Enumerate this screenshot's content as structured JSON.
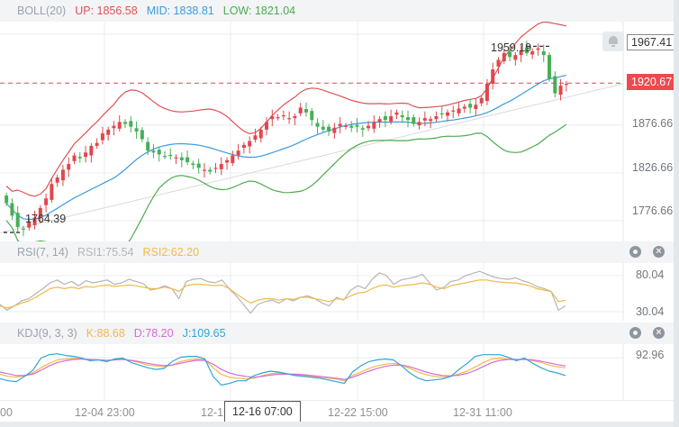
{
  "main_panel": {
    "indicator": "BOLL(20)",
    "up_label": "UP: 1856.58",
    "mid_label": "MID: 1838.81",
    "low_label": "LOW: 1821.04",
    "y_ticks": [
      "1876.66",
      "1826.66",
      "1776.66"
    ],
    "top_tag": "1967.41",
    "current_price_tag": "1920.67",
    "max_annotation": "1959.19",
    "min_annotation": "1764.39",
    "colors": {
      "up": "#e05254",
      "mid": "#3d9be0",
      "low": "#4daa4d",
      "candle_up": "#e0474c",
      "candle_down": "#45b056",
      "current_line": "#e0474c"
    }
  },
  "rsi_panel": {
    "indicator": "RSI(7, 14)",
    "rsi1_label": "RSI1:75.54",
    "rsi2_label": "RSI2:62.20",
    "y_ticks": [
      "80.04",
      "30.04"
    ],
    "colors": {
      "rsi1": "#b5b5b5",
      "rsi2": "#f0b94a"
    }
  },
  "kdj_panel": {
    "indicator": "KDJ(9, 3, 3)",
    "k_label": "K:88.68",
    "d_label": "D:78.20",
    "j_label": "J:109.65",
    "y_ticks": [
      "92.96"
    ],
    "colors": {
      "k": "#f0b94a",
      "d": "#d56bd6",
      "j": "#2fa6d8"
    }
  },
  "x_axis": {
    "labels": [
      "00",
      "12-04 23:00",
      "12-1",
      "12-22 15:00",
      "12-31 11:00"
    ],
    "cursor_label": "12-16 07:00"
  },
  "icons": [
    "gear-icon",
    "close-icon",
    "alarm-bell-icon"
  ],
  "chart_data": [
    {
      "type": "candlestick",
      "title": "BOLL(20)",
      "legend": [
        "UP: 1856.58",
        "MID: 1838.81",
        "LOW: 1821.04"
      ],
      "x": [
        "12-04 23:00",
        "12-16 07:00",
        "12-22 15:00",
        "12-31 11:00"
      ],
      "ylim": [
        1755,
        1985
      ],
      "y_ticks": [
        1776.66,
        1826.66,
        1876.66
      ],
      "annotations": {
        "max": 1959.19,
        "min": 1764.39,
        "last": 1920.67,
        "top_tag": 1967.41
      },
      "closes": [
        1795,
        1782,
        1770,
        1768,
        1775,
        1780,
        1790,
        1800,
        1815,
        1822,
        1830,
        1836,
        1845,
        1842,
        1848,
        1855,
        1858,
        1868,
        1872,
        1876,
        1880,
        1878,
        1875,
        1870,
        1862,
        1850,
        1848,
        1846,
        1844,
        1845,
        1843,
        1840,
        1838,
        1835,
        1832,
        1830,
        1828,
        1832,
        1836,
        1840,
        1845,
        1850,
        1856,
        1860,
        1866,
        1872,
        1880,
        1886,
        1885,
        1887,
        1884,
        1886,
        1895,
        1890,
        1882,
        1875,
        1872,
        1870,
        1874,
        1878,
        1876,
        1874,
        1875,
        1872,
        1876,
        1880,
        1883,
        1882,
        1886,
        1890,
        1885,
        1882,
        1878,
        1880,
        1884,
        1883,
        1886,
        1888,
        1890,
        1892,
        1894,
        1896,
        1895,
        1898,
        1905,
        1920,
        1935,
        1945,
        1952,
        1948,
        1950,
        1955,
        1952,
        1954,
        1957,
        1950,
        1925,
        1910,
        1918,
        1920
      ],
      "series": [
        {
          "name": "UP",
          "color": "#e05254"
        },
        {
          "name": "MID",
          "color": "#3d9be0"
        },
        {
          "name": "LOW",
          "color": "#4daa4d"
        }
      ]
    },
    {
      "type": "line",
      "title": "RSI(7, 14)",
      "ylim": [
        20,
        95
      ],
      "y_ticks": [
        30.04,
        80.04
      ],
      "series": [
        {
          "name": "RSI1",
          "last": 75.54,
          "values": [
            40,
            32,
            38,
            45,
            48,
            55,
            62,
            70,
            74,
            68,
            72,
            66,
            73,
            70,
            72,
            74,
            68,
            70,
            75,
            72,
            69,
            60,
            62,
            66,
            62,
            48,
            72,
            75,
            76,
            72,
            70,
            74,
            62,
            52,
            40,
            28,
            40,
            44,
            46,
            42,
            48,
            45,
            50,
            52,
            48,
            42,
            38,
            50,
            46,
            60,
            66,
            62,
            75,
            84,
            80,
            68,
            74,
            76,
            78,
            82,
            70,
            60,
            64,
            72,
            74,
            80,
            83,
            86,
            82,
            78,
            76,
            75,
            77,
            73,
            70,
            65,
            62,
            58,
            32,
            38
          ]
        },
        {
          "name": "RSI2",
          "last": 62.2,
          "values": [
            38,
            35,
            38,
            42,
            45,
            50,
            56,
            62,
            64,
            62,
            64,
            62,
            65,
            64,
            66,
            67,
            65,
            66,
            67,
            66,
            64,
            62,
            62,
            64,
            62,
            58,
            66,
            68,
            68,
            67,
            66,
            67,
            62,
            55,
            48,
            42,
            46,
            48,
            48,
            46,
            48,
            47,
            50,
            50,
            48,
            46,
            44,
            48,
            47,
            52,
            56,
            57,
            62,
            66,
            67,
            64,
            66,
            67,
            68,
            70,
            68,
            64,
            62,
            66,
            68,
            70,
            72,
            74,
            74,
            72,
            71,
            70,
            70,
            68,
            66,
            62,
            60,
            58,
            44,
            46
          ]
        }
      ]
    },
    {
      "type": "line",
      "title": "KDJ(9, 3, 3)",
      "ylim": [
        0,
        120
      ],
      "y_ticks": [
        92.96
      ],
      "series": [
        {
          "name": "K",
          "last": 88.68,
          "values": [
            55,
            50,
            48,
            52,
            58,
            70,
            80,
            88,
            90,
            92,
            90,
            88,
            88,
            86,
            88,
            90,
            86,
            82,
            76,
            74,
            72,
            76,
            84,
            88,
            90,
            88,
            70,
            55,
            48,
            46,
            44,
            46,
            52,
            56,
            58,
            56,
            54,
            52,
            50,
            48,
            46,
            44,
            40,
            52,
            60,
            68,
            74,
            78,
            80,
            76,
            68,
            60,
            54,
            50,
            48,
            50,
            56,
            62,
            72,
            82,
            90,
            92,
            90,
            88,
            90,
            86,
            82,
            76,
            72,
            70
          ]
        },
        {
          "name": "D",
          "last": 78.2,
          "values": [
            60,
            56,
            52,
            52,
            55,
            64,
            74,
            82,
            86,
            89,
            90,
            89,
            88,
            87,
            88,
            89,
            87,
            84,
            80,
            77,
            75,
            76,
            80,
            84,
            87,
            87,
            78,
            66,
            58,
            53,
            50,
            48,
            50,
            53,
            55,
            55,
            55,
            54,
            52,
            50,
            48,
            46,
            43,
            48,
            55,
            62,
            68,
            73,
            76,
            76,
            72,
            66,
            60,
            55,
            52,
            51,
            53,
            57,
            64,
            73,
            82,
            87,
            89,
            89,
            89,
            88,
            85,
            81,
            77,
            74
          ]
        },
        {
          "name": "J",
          "last": 109.65,
          "values": [
            45,
            40,
            38,
            50,
            64,
            92,
            100,
            102,
            98,
            96,
            92,
            86,
            88,
            84,
            90,
            92,
            82,
            76,
            70,
            66,
            68,
            84,
            94,
            96,
            96,
            90,
            50,
            30,
            34,
            40,
            40,
            52,
            58,
            62,
            60,
            56,
            52,
            50,
            48,
            46,
            42,
            38,
            34,
            60,
            74,
            84,
            88,
            90,
            88,
            74,
            58,
            46,
            40,
            42,
            44,
            50,
            66,
            80,
            96,
            100,
            100,
            100,
            94,
            86,
            92,
            80,
            70,
            62,
            58,
            52
          ]
        }
      ]
    }
  ]
}
